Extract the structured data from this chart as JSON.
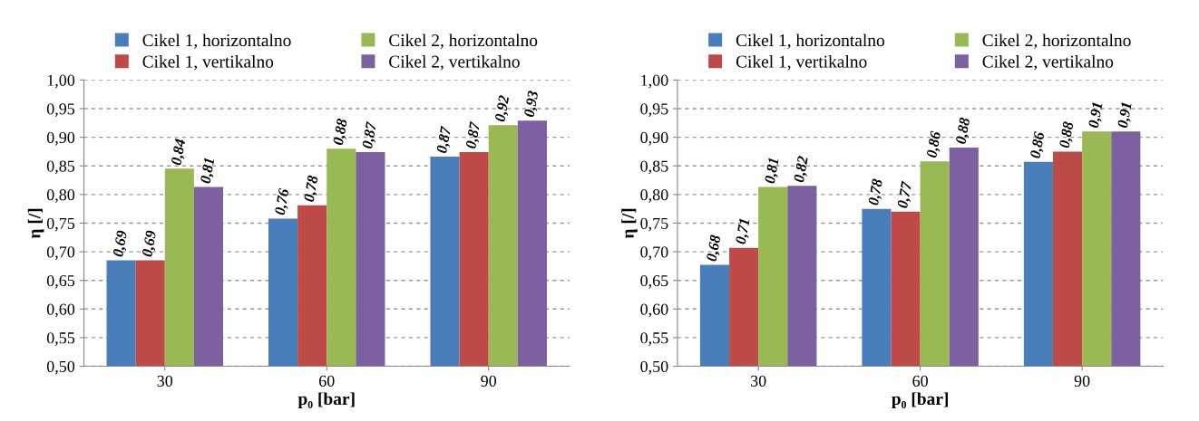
{
  "chart_data": [
    {
      "type": "bar",
      "categories": [
        "30",
        "60",
        "90"
      ],
      "xlabel": "p₀ [bar]",
      "ylabel": "η [/]",
      "ylim": [
        0.5,
        1.0
      ],
      "yticks": [
        {
          "value": 0.5,
          "label": "0,50"
        },
        {
          "value": 0.55,
          "label": "0,55"
        },
        {
          "value": 0.6,
          "label": "0,60"
        },
        {
          "value": 0.65,
          "label": "0,65"
        },
        {
          "value": 0.7,
          "label": "0,70"
        },
        {
          "value": 0.75,
          "label": "0,75"
        },
        {
          "value": 0.8,
          "label": "0,80"
        },
        {
          "value": 0.85,
          "label": "0,85"
        },
        {
          "value": 0.9,
          "label": "0,90"
        },
        {
          "value": 0.95,
          "label": "0,95"
        },
        {
          "value": 1.0,
          "label": "1,00"
        }
      ],
      "grid": "y",
      "legend": "top",
      "series": [
        {
          "name": "Cikel 1, horizontalno",
          "color": "#4a7ebb",
          "values": [
            0.685,
            0.758,
            0.866
          ],
          "value_labels": [
            "0,69",
            "0,76",
            "0,87"
          ]
        },
        {
          "name": "Cikel 1, vertikalno",
          "color": "#be4b48",
          "values": [
            0.685,
            0.781,
            0.874
          ],
          "value_labels": [
            "0,69",
            "0,78",
            "0,87"
          ]
        },
        {
          "name": "Cikel 2, horizontalno",
          "color": "#98b954",
          "values": [
            0.845,
            0.88,
            0.921
          ],
          "value_labels": [
            "0,84",
            "0,88",
            "0,92"
          ]
        },
        {
          "name": "Cikel 2, vertikalno",
          "color": "#7d60a0",
          "values": [
            0.813,
            0.874,
            0.929
          ],
          "value_labels": [
            "0,81",
            "0,87",
            "0,93"
          ]
        }
      ]
    },
    {
      "type": "bar",
      "categories": [
        "30",
        "60",
        "90"
      ],
      "xlabel": "p₀ [bar]",
      "ylabel": "η [/]",
      "ylim": [
        0.5,
        1.0
      ],
      "yticks": [
        {
          "value": 0.5,
          "label": "0,50"
        },
        {
          "value": 0.55,
          "label": "0,55"
        },
        {
          "value": 0.6,
          "label": "0,60"
        },
        {
          "value": 0.65,
          "label": "0,65"
        },
        {
          "value": 0.7,
          "label": "0,70"
        },
        {
          "value": 0.75,
          "label": "0,75"
        },
        {
          "value": 0.8,
          "label": "0,80"
        },
        {
          "value": 0.85,
          "label": "0,85"
        },
        {
          "value": 0.9,
          "label": "0,90"
        },
        {
          "value": 0.95,
          "label": "0,95"
        },
        {
          "value": 1.0,
          "label": "1,00"
        }
      ],
      "grid": "y",
      "legend": "top",
      "series": [
        {
          "name": "Cikel 1, horizontalno",
          "color": "#4a7ebb",
          "values": [
            0.677,
            0.775,
            0.857
          ],
          "value_labels": [
            "0,68",
            "0,78",
            "0,86"
          ]
        },
        {
          "name": "Cikel 1, vertikalno",
          "color": "#be4b48",
          "values": [
            0.707,
            0.77,
            0.875
          ],
          "value_labels": [
            "0,71",
            "0,77",
            "0,88"
          ]
        },
        {
          "name": "Cikel 2, horizontalno",
          "color": "#98b954",
          "values": [
            0.813,
            0.858,
            0.91
          ],
          "value_labels": [
            "0,81",
            "0,86",
            "0,91"
          ]
        },
        {
          "name": "Cikel 2, vertikalno",
          "color": "#7d60a0",
          "values": [
            0.815,
            0.882,
            0.91
          ],
          "value_labels": [
            "0,82",
            "0,88",
            "0,91"
          ]
        }
      ]
    }
  ]
}
